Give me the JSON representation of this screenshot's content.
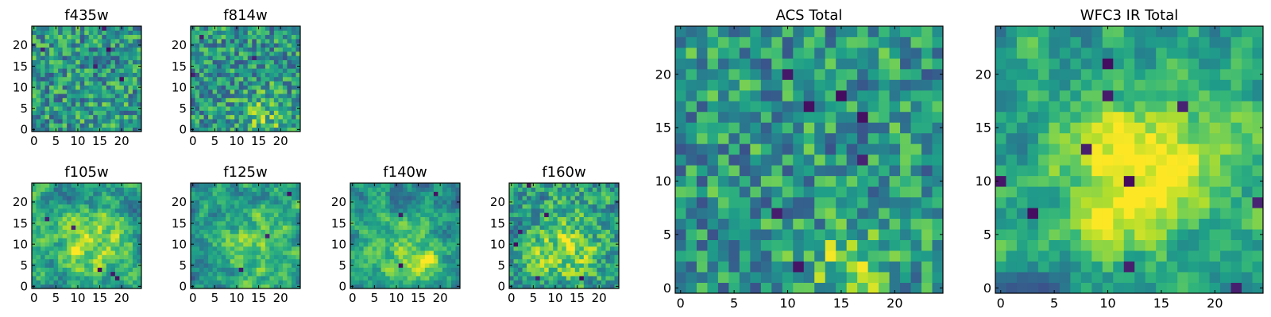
{
  "figure": {
    "background": "#ffffff"
  },
  "chart_data": [
    {
      "type": "heatmap",
      "title": "f435w",
      "grid_size": 25,
      "xticks": [
        0,
        5,
        10,
        15,
        20
      ],
      "yticks": [
        0,
        5,
        10,
        15,
        20
      ],
      "colormap": "viridis",
      "seed": 11,
      "smooth": 0,
      "blob": {
        "x": 16,
        "y": 2,
        "amp": 0.05,
        "sigma": 4
      },
      "dark_spots": 5
    },
    {
      "type": "heatmap",
      "title": "f814w",
      "grid_size": 25,
      "xticks": [
        0,
        5,
        10,
        15,
        20
      ],
      "yticks": [
        0,
        5,
        10,
        15,
        20
      ],
      "colormap": "viridis",
      "seed": 23,
      "smooth": 0,
      "blob": {
        "x": 16,
        "y": 3,
        "amp": 0.2,
        "sigma": 4
      },
      "dark_spots": 3
    },
    {
      "type": "heatmap",
      "title": "f105w",
      "grid_size": 25,
      "xticks": [
        0,
        5,
        10,
        15,
        20
      ],
      "yticks": [
        0,
        5,
        10,
        15,
        20
      ],
      "colormap": "viridis",
      "seed": 37,
      "smooth": 2,
      "blob": {
        "x": 13,
        "y": 10,
        "amp": 0.35,
        "sigma": 6
      },
      "dark_spots": 5
    },
    {
      "type": "heatmap",
      "title": "f125w",
      "grid_size": 25,
      "xticks": [
        0,
        5,
        10,
        15,
        20
      ],
      "yticks": [
        0,
        5,
        10,
        15,
        20
      ],
      "colormap": "viridis",
      "seed": 41,
      "smooth": 2,
      "blob": {
        "x": 14,
        "y": 10,
        "amp": 0.3,
        "sigma": 6
      },
      "dark_spots": 3
    },
    {
      "type": "heatmap",
      "title": "f140w",
      "grid_size": 25,
      "xticks": [
        0,
        5,
        10,
        15,
        20
      ],
      "yticks": [
        0,
        5,
        10,
        15,
        20
      ],
      "colormap": "viridis",
      "seed": 53,
      "smooth": 2,
      "blob": {
        "x": 14,
        "y": 6,
        "amp": 0.3,
        "sigma": 6
      },
      "dark_spots": 3
    },
    {
      "type": "heatmap",
      "title": "f160w",
      "grid_size": 25,
      "xticks": [
        0,
        5,
        10,
        15,
        20
      ],
      "yticks": [
        0,
        5,
        10,
        15,
        20
      ],
      "colormap": "viridis",
      "seed": 67,
      "smooth": 1,
      "blob": {
        "x": 12,
        "y": 9,
        "amp": 0.3,
        "sigma": 6
      },
      "dark_spots": 6
    },
    {
      "type": "heatmap",
      "title": "ACS Total",
      "grid_size": 25,
      "xticks": [
        0,
        5,
        10,
        15,
        20
      ],
      "yticks": [
        0,
        5,
        10,
        15,
        20
      ],
      "colormap": "viridis",
      "seed": 79,
      "smooth": 0,
      "blob": {
        "x": 16,
        "y": 2,
        "amp": 0.25,
        "sigma": 3
      },
      "dark_spots": 7
    },
    {
      "type": "heatmap",
      "title": "WFC3 IR Total",
      "grid_size": 25,
      "xticks": [
        0,
        5,
        10,
        15,
        20
      ],
      "yticks": [
        0,
        5,
        10,
        15,
        20
      ],
      "colormap": "viridis",
      "seed": 97,
      "smooth": 2,
      "blob": {
        "x": 13,
        "y": 11,
        "amp": 0.45,
        "sigma": 5
      },
      "dark_spots": 10
    }
  ]
}
